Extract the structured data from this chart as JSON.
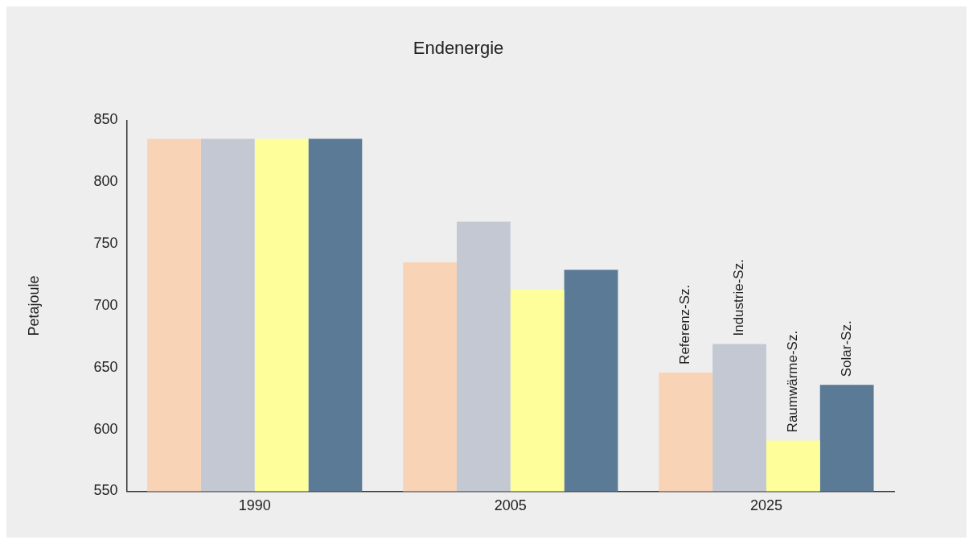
{
  "chart_data": {
    "type": "bar",
    "title": "Endenergie",
    "ylabel": "Petajoule",
    "categories": [
      "1990",
      "2005",
      "2025"
    ],
    "series": [
      {
        "name": "Referenz-Sz.",
        "color": "#f9d3b5",
        "values": [
          835,
          735,
          646
        ]
      },
      {
        "name": "Industrie-Sz.",
        "color": "#c3c8d3",
        "values": [
          835,
          768,
          669
        ]
      },
      {
        "name": "Raumwärme-Sz.",
        "color": "#fefe9a",
        "values": [
          835,
          713,
          591
        ]
      },
      {
        "name": "Solar-Sz.",
        "color": "#5a7a96",
        "values": [
          835,
          729,
          636
        ]
      }
    ],
    "ylim": [
      550,
      850
    ],
    "yticks": [
      550,
      600,
      650,
      700,
      750,
      800,
      850
    ],
    "grid": false,
    "legend": false
  }
}
